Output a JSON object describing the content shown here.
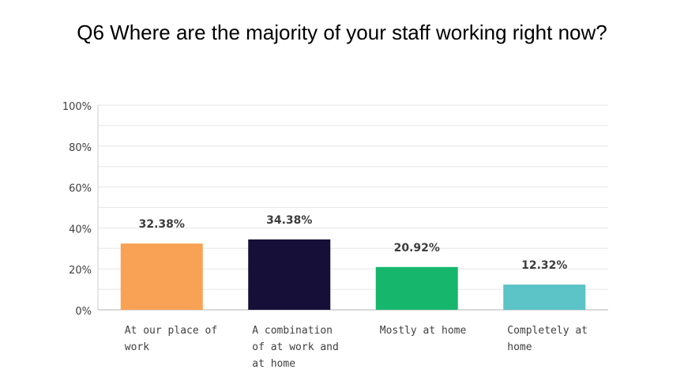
{
  "chart_data": {
    "type": "bar",
    "title": "Q6 Where are the majority of your staff working right now?",
    "categories": [
      [
        "At our place of",
        "work"
      ],
      [
        "A combination",
        "of at work and",
        "at home"
      ],
      [
        "Mostly at home"
      ],
      [
        "Completely at",
        "home"
      ]
    ],
    "values": [
      32.38,
      34.38,
      20.92,
      12.32
    ],
    "value_labels": [
      "32.38%",
      "34.38%",
      "20.92%",
      "12.32%"
    ],
    "colors": [
      "#f9a154",
      "#160f37",
      "#16b76d",
      "#5cc3c6"
    ],
    "y_ticks": [
      "0%",
      "20%",
      "40%",
      "60%",
      "80%",
      "100%"
    ],
    "ylim": [
      0,
      100
    ],
    "grid": true
  }
}
